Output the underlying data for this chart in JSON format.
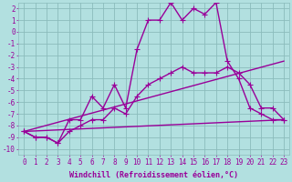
{
  "xlabel": "Windchill (Refroidissement éolien,°C)",
  "background_color": "#b2e0e0",
  "grid_color": "#8bbcbc",
  "line_color": "#990099",
  "x_ticks": [
    0,
    1,
    2,
    3,
    4,
    5,
    6,
    7,
    8,
    9,
    10,
    11,
    12,
    13,
    14,
    15,
    16,
    17,
    18,
    19,
    20,
    21,
    22,
    23
  ],
  "y_ticks": [
    2,
    1,
    0,
    -1,
    -2,
    -3,
    -4,
    -5,
    -6,
    -7,
    -8,
    -9,
    -10
  ],
  "xlim": [
    -0.5,
    23.5
  ],
  "ylim": [
    -10.5,
    2.5
  ],
  "series": [
    {
      "x": [
        0,
        1,
        2,
        3,
        4,
        5,
        6,
        7,
        8,
        9,
        10,
        11,
        12,
        13,
        14,
        15,
        16,
        17,
        18,
        19,
        20,
        21,
        22,
        23
      ],
      "y": [
        -8.5,
        -9.0,
        -9.0,
        -9.5,
        -7.5,
        -7.5,
        -5.5,
        -6.5,
        -4.5,
        -6.5,
        -1.5,
        1.0,
        1.0,
        2.5,
        1.0,
        2.0,
        1.5,
        2.5,
        -2.5,
        -4.0,
        -6.5,
        -7.0,
        -7.5,
        -7.5
      ],
      "has_markers": true
    },
    {
      "x": [
        0,
        1,
        2,
        3,
        4,
        5,
        6,
        7,
        8,
        9,
        10,
        11,
        12,
        13,
        14,
        15,
        16,
        17,
        18,
        19,
        20,
        21,
        22,
        23
      ],
      "y": [
        -8.5,
        -9.0,
        -9.0,
        -9.5,
        -8.5,
        -8.0,
        -7.5,
        -7.5,
        -6.5,
        -7.0,
        -5.5,
        -4.5,
        -4.0,
        -3.5,
        -3.0,
        -3.5,
        -3.5,
        -3.5,
        -3.0,
        -3.5,
        -4.5,
        -6.5,
        -6.5,
        -7.5
      ],
      "has_markers": true
    },
    {
      "x": [
        0,
        23
      ],
      "y": [
        -8.5,
        -2.5
      ],
      "has_markers": false
    },
    {
      "x": [
        0,
        23
      ],
      "y": [
        -8.5,
        -7.5
      ],
      "has_markers": false
    }
  ],
  "marker": "+",
  "markersize": 4,
  "linewidth": 1.0,
  "xlabel_fontsize": 6,
  "tick_fontsize": 5.5
}
